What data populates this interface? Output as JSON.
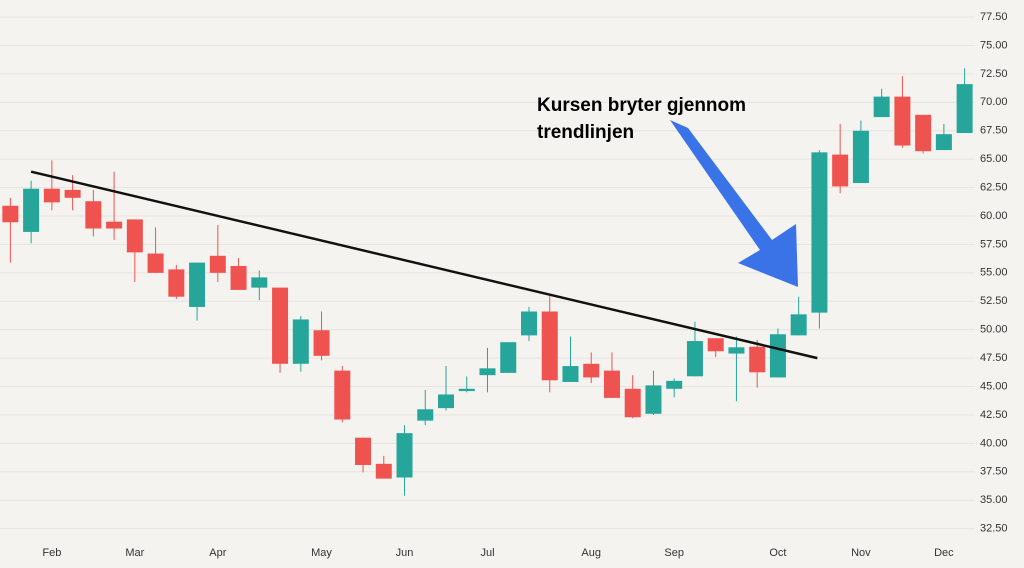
{
  "chart_data": {
    "type": "candlestick",
    "categories": [
      null,
      null,
      "Feb",
      null,
      null,
      null,
      "Mar",
      null,
      null,
      null,
      "Apr",
      null,
      null,
      null,
      null,
      "May",
      null,
      null,
      null,
      "Jun",
      null,
      null,
      null,
      "Jul",
      null,
      null,
      null,
      null,
      "Aug",
      null,
      null,
      null,
      "Sep",
      null,
      null,
      null,
      null,
      "Oct",
      null,
      null,
      null,
      "Nov",
      null,
      null,
      null,
      "Dec",
      null
    ],
    "series": [
      {
        "open": [
          60.9,
          58.6,
          62.4,
          62.3,
          61.3,
          59.5,
          59.7,
          56.7,
          55.3,
          52.0,
          56.5,
          55.6,
          53.7,
          53.7,
          47.0,
          49.95,
          46.4,
          40.5,
          38.2,
          37.0,
          42.0,
          43.1,
          44.6,
          46.0,
          46.2,
          49.5,
          51.6,
          45.4,
          47.0,
          46.4,
          44.8,
          42.6,
          44.8,
          45.9,
          49.25,
          47.9,
          48.5,
          45.8,
          49.5,
          51.5,
          65.4,
          62.9,
          68.7,
          70.5,
          68.9,
          65.8,
          67.3
        ],
        "high": [
          61.6,
          63.1,
          64.9,
          63.6,
          62.3,
          63.9,
          59.7,
          59.0,
          55.7,
          55.9,
          59.2,
          56.3,
          55.2,
          53.7,
          51.2,
          51.6,
          46.8,
          40.5,
          38.9,
          41.6,
          44.7,
          46.8,
          45.9,
          48.4,
          48.9,
          52.0,
          53.0,
          49.4,
          48.0,
          48.0,
          46.0,
          46.4,
          45.7,
          50.7,
          49.25,
          49.4,
          49.1,
          50.1,
          52.9,
          65.8,
          68.1,
          68.4,
          71.2,
          72.3,
          68.9,
          68.1,
          73.0
        ],
        "low": [
          55.9,
          57.6,
          60.5,
          60.5,
          58.2,
          57.9,
          54.2,
          55.0,
          52.7,
          50.8,
          54.2,
          53.5,
          52.6,
          46.2,
          46.3,
          47.3,
          41.85,
          37.45,
          36.9,
          35.4,
          41.6,
          42.9,
          44.5,
          44.5,
          46.2,
          49.0,
          44.5,
          45.4,
          45.3,
          44.0,
          42.2,
          42.5,
          44.05,
          45.9,
          47.6,
          43.7,
          44.9,
          45.8,
          49.5,
          50.1,
          62.0,
          62.9,
          68.7,
          66.0,
          65.5,
          65.8,
          67.3
        ],
        "close": [
          59.45,
          62.4,
          61.2,
          61.6,
          58.9,
          58.9,
          56.8,
          55.0,
          52.9,
          55.9,
          55.0,
          53.5,
          54.6,
          47.0,
          50.9,
          47.7,
          42.1,
          38.1,
          36.9,
          40.9,
          43.0,
          44.3,
          44.8,
          46.6,
          48.9,
          51.6,
          45.55,
          46.8,
          45.8,
          44.0,
          42.3,
          45.1,
          45.5,
          49.0,
          48.1,
          48.45,
          46.25,
          49.6,
          51.35,
          65.6,
          62.6,
          67.5,
          70.5,
          66.2,
          65.7,
          67.2,
          71.6
        ],
        "up_color": "#26a69a",
        "down_color": "#ef5350"
      }
    ],
    "trendline": {
      "x": [
        1,
        38.9
      ],
      "y": [
        63.9,
        47.5
      ],
      "color": "#111111"
    },
    "annotation": [
      "Kursen bryter gjennom",
      "trendlinjen"
    ],
    "ylim": [
      31.5,
      79
    ],
    "yticks": [
      {
        "value": 32.5,
        "label": "32.50"
      },
      {
        "value": 35,
        "label": "35.00"
      },
      {
        "value": 37.5,
        "label": "37.50"
      },
      {
        "value": 40,
        "label": "40.00"
      },
      {
        "value": 42.5,
        "label": "42.50"
      },
      {
        "value": 45,
        "label": "45.00"
      },
      {
        "value": 47.5,
        "label": "47.50"
      },
      {
        "value": 50,
        "label": "50.00"
      },
      {
        "value": 52.5,
        "label": "52.50"
      },
      {
        "value": 55,
        "label": "55.00"
      },
      {
        "value": 57.5,
        "label": "57.50"
      },
      {
        "value": 60,
        "label": "60.00"
      },
      {
        "value": 62.5,
        "label": "62.50"
      },
      {
        "value": 65,
        "label": "65.00"
      },
      {
        "value": 67.5,
        "label": "67.50"
      },
      {
        "value": 70,
        "label": "70.00"
      },
      {
        "value": 72.5,
        "label": "72.50"
      },
      {
        "value": 75,
        "label": "75.00"
      },
      {
        "value": 77.5,
        "label": "77.50"
      }
    ],
    "grid": true
  }
}
